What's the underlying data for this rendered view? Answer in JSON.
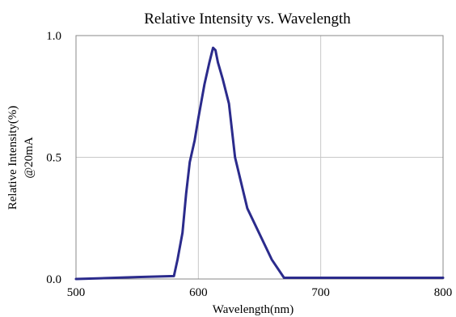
{
  "chart_data": {
    "type": "line",
    "title": "Relative Intensity vs. Wavelength",
    "xlabel": "Wavelength(nm)",
    "ylabel": [
      "Relative Intensity(%)",
      "@20mA"
    ],
    "xlim": [
      500,
      800
    ],
    "ylim": [
      0,
      1.0
    ],
    "x_ticks": [
      500,
      600,
      700,
      800
    ],
    "x_tick_labels": [
      "500",
      "600",
      "700",
      "800"
    ],
    "y_ticks": [
      0,
      0.5,
      1.0
    ],
    "y_tick_labels": [
      "0.0",
      "0.5",
      "1.0"
    ],
    "grid": true,
    "legend": "none",
    "series": [
      {
        "color": "#2b2b8c",
        "x": [
          500,
          520,
          550,
          580,
          583,
          587,
          590,
          593,
          597,
          600,
          605,
          609,
          612,
          614,
          616,
          620,
          625,
          630,
          640,
          660,
          670,
          700,
          750,
          800
        ],
        "y": [
          0.0,
          0.003,
          0.008,
          0.012,
          0.08,
          0.19,
          0.35,
          0.48,
          0.57,
          0.66,
          0.8,
          0.89,
          0.95,
          0.94,
          0.89,
          0.82,
          0.72,
          0.5,
          0.29,
          0.08,
          0.005,
          0.005,
          0.005,
          0.005
        ]
      }
    ]
  }
}
